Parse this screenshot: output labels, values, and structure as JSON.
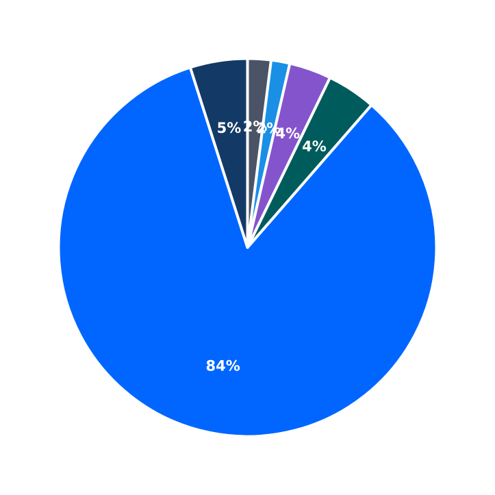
{
  "chart_data": {
    "type": "pie",
    "start_angle_deg": 90,
    "direction": "clockwise",
    "legend": "none",
    "title": "",
    "slices": [
      {
        "value": 2,
        "label": "2%",
        "color": "#4a5466"
      },
      {
        "value": 1.6,
        "label": "2%",
        "color": "#1a8fe6"
      },
      {
        "value": 3.6,
        "label": "4%",
        "color": "#8454cc"
      },
      {
        "value": 4.2,
        "label": "4%",
        "color": "#005c5c"
      },
      {
        "value": 83.7,
        "label": "84%",
        "color": "#0066ff"
      },
      {
        "value": 4.9,
        "label": "5%",
        "color": "#133a66"
      }
    ]
  }
}
